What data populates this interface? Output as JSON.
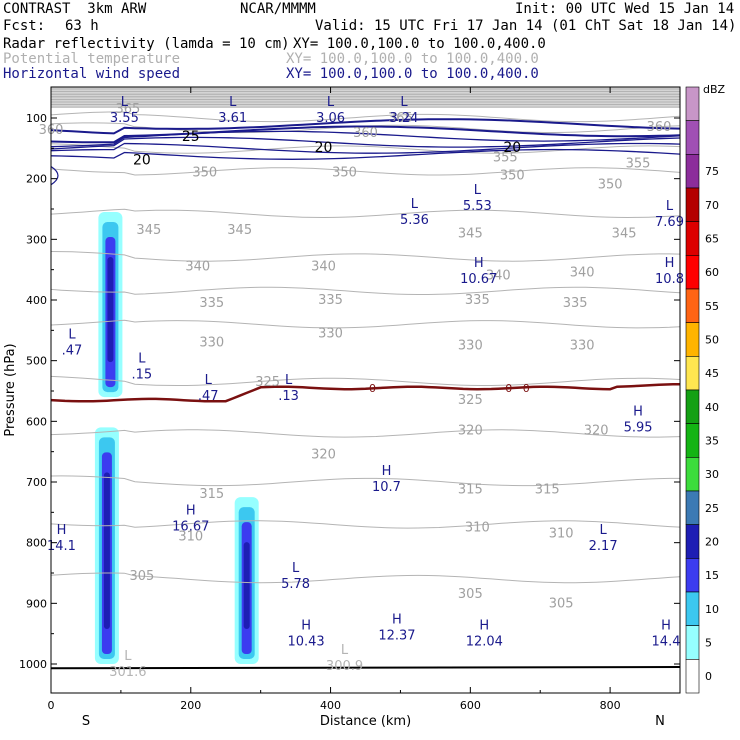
{
  "header": {
    "model": "CONTRAST  3km ARW",
    "source": "NCAR/MMMM",
    "init": "Init: 00 UTC Wed 15 Jan 14",
    "fcst_label": "Fcst:",
    "fcst_value": "63 h",
    "valid": "Valid: 15 UTC Fri 17 Jan 14 (01 ChT Sat 18 Jan 14)",
    "fields": [
      {
        "name": "Radar reflectivity (lamda = 10 cm)",
        "xy": "XY= 100.0,100.0 to 100.0,400.0",
        "color": "#000000"
      },
      {
        "name": "Potential temperature",
        "xy": "XY= 100.0,100.0 to 100.0,400.0",
        "color": "#b4b4b4"
      },
      {
        "name": "Horizontal wind speed",
        "xy": "XY= 100.0,100.0 to 100.0,400.0",
        "color": "#1a1a8c"
      }
    ]
  },
  "chart_data": {
    "type": "cross-section",
    "xlabel": "Distance (km)",
    "ylabel": "Pressure (hPa)",
    "xlim": [
      0,
      900
    ],
    "ylim": [
      1000,
      70
    ],
    "x_ticks": [
      0,
      200,
      400,
      600,
      800
    ],
    "y_ticks": [
      100,
      200,
      300,
      400,
      500,
      600,
      700,
      800,
      900,
      1000
    ],
    "end_labels": {
      "left": "S",
      "right": "N"
    },
    "colorbar": {
      "unit": "dBZ",
      "levels": [
        0,
        5,
        10,
        15,
        20,
        25,
        30,
        35,
        40,
        45,
        50,
        55,
        60,
        65,
        70,
        75
      ],
      "colors": [
        "#ffffff",
        "#96ffff",
        "#3cc8f0",
        "#3c3cf0",
        "#1e1eb4",
        "#3c7ab4",
        "#3cdc3c",
        "#14b414",
        "#14a014",
        "#ffe650",
        "#ffb400",
        "#ff6414",
        "#ff0000",
        "#dc0000",
        "#b40000",
        "#8c2d9b",
        "#a050b4",
        "#c896c8"
      ]
    },
    "theta_contours": [
      {
        "value": "365",
        "label_positions": [
          [
            110,
            85
          ],
          [
            500,
            100
          ]
        ]
      },
      {
        "value": "360",
        "label_positions": [
          [
            0,
            120
          ],
          [
            450,
            125
          ],
          [
            870,
            115
          ]
        ]
      },
      {
        "value": "355",
        "label_positions": [
          [
            650,
            165
          ],
          [
            840,
            175
          ]
        ]
      },
      {
        "value": "350",
        "label_positions": [
          [
            220,
            190
          ],
          [
            420,
            190
          ],
          [
            660,
            195
          ],
          [
            800,
            210
          ]
        ]
      },
      {
        "value": "345",
        "label_positions": [
          [
            140,
            285
          ],
          [
            270,
            285
          ],
          [
            600,
            290
          ],
          [
            820,
            290
          ]
        ]
      },
      {
        "value": "340",
        "label_positions": [
          [
            210,
            345
          ],
          [
            390,
            345
          ],
          [
            640,
            360
          ],
          [
            760,
            355
          ]
        ]
      },
      {
        "value": "335",
        "label_positions": [
          [
            230,
            405
          ],
          [
            400,
            400
          ],
          [
            610,
            400
          ],
          [
            750,
            405
          ]
        ]
      },
      {
        "value": "330",
        "label_positions": [
          [
            230,
            470
          ],
          [
            400,
            455
          ],
          [
            600,
            475
          ],
          [
            760,
            475
          ]
        ]
      },
      {
        "value": "325",
        "label_positions": [
          [
            310,
            535
          ],
          [
            600,
            565
          ]
        ]
      },
      {
        "value": "320",
        "label_positions": [
          [
            390,
            655
          ],
          [
            600,
            615
          ],
          [
            780,
            615
          ]
        ]
      },
      {
        "value": "315",
        "label_positions": [
          [
            230,
            720
          ],
          [
            600,
            712
          ],
          [
            710,
            712
          ]
        ]
      },
      {
        "value": "310",
        "label_positions": [
          [
            200,
            790
          ],
          [
            610,
            775
          ],
          [
            730,
            785
          ]
        ]
      },
      {
        "value": "305",
        "label_positions": [
          [
            130,
            855
          ],
          [
            600,
            885
          ],
          [
            730,
            900
          ]
        ]
      }
    ],
    "wind_contours": [
      {
        "value": "25",
        "label_positions": [
          [
            200,
            130
          ]
        ]
      },
      {
        "value": "20",
        "label_positions": [
          [
            130,
            168
          ],
          [
            390,
            148
          ],
          [
            660,
            148
          ]
        ]
      }
    ],
    "zero_line_labels": [
      "0",
      "0",
      "0"
    ],
    "extrema": [
      {
        "type": "L",
        "value": "3.55",
        "x": 105,
        "p": 87,
        "color": "#1a1a8c"
      },
      {
        "type": "L",
        "value": "3.61",
        "x": 260,
        "p": 87,
        "color": "#1a1a8c"
      },
      {
        "type": "L",
        "value": "3.06",
        "x": 400,
        "p": 87,
        "color": "#1a1a8c"
      },
      {
        "type": "L",
        "value": "3.24",
        "x": 505,
        "p": 87,
        "color": "#1a1a8c"
      },
      {
        "type": "L",
        "value": "5.36",
        "x": 520,
        "p": 255,
        "color": "#1a1a8c"
      },
      {
        "type": "L",
        "value": "5.53",
        "x": 610,
        "p": 232,
        "color": "#1a1a8c"
      },
      {
        "type": "L",
        "value": "7.69",
        "x": 885,
        "p": 258,
        "color": "#1a1a8c"
      },
      {
        "type": "H",
        "value": "10.67",
        "x": 612,
        "p": 352,
        "color": "#1a1a8c"
      },
      {
        "type": "H",
        "value": "10.8",
        "x": 885,
        "p": 352,
        "color": "#1a1a8c"
      },
      {
        "type": "L",
        "value": ".47",
        "x": 30,
        "p": 470,
        "color": "#1a1a8c"
      },
      {
        "type": "L",
        "value": ".15",
        "x": 130,
        "p": 510,
        "color": "#1a1a8c"
      },
      {
        "type": "L",
        "value": ".47",
        "x": 225,
        "p": 545,
        "color": "#1a1a8c"
      },
      {
        "type": "L",
        "value": ".13",
        "x": 340,
        "p": 545,
        "color": "#1a1a8c"
      },
      {
        "type": "H",
        "value": "5.95",
        "x": 840,
        "p": 597,
        "color": "#1a1a8c"
      },
      {
        "type": "H",
        "value": "10.7",
        "x": 480,
        "p": 695,
        "color": "#1a1a8c"
      },
      {
        "type": "H",
        "value": "16.67",
        "x": 200,
        "p": 760,
        "color": "#1a1a8c"
      },
      {
        "type": "H",
        "value": "14.1",
        "x": 15,
        "p": 792,
        "color": "#1a1a8c"
      },
      {
        "type": "L",
        "value": "2.17",
        "x": 790,
        "p": 792,
        "color": "#1a1a8c"
      },
      {
        "type": "L",
        "value": "5.78",
        "x": 350,
        "p": 855,
        "color": "#1a1a8c"
      },
      {
        "type": "H",
        "value": "10.43",
        "x": 365,
        "p": 950,
        "color": "#1a1a8c"
      },
      {
        "type": "H",
        "value": "12.37",
        "x": 495,
        "p": 940,
        "color": "#1a1a8c"
      },
      {
        "type": "H",
        "value": "12.04",
        "x": 620,
        "p": 950,
        "color": "#1a1a8c"
      },
      {
        "type": "H",
        "value": "14.4",
        "x": 880,
        "p": 950,
        "color": "#1a1a8c"
      },
      {
        "type": "L",
        "value": "301.6",
        "x": 110,
        "p": 1000,
        "color": "#b4b4b4"
      },
      {
        "type": "L",
        "value": "300.9",
        "x": 420,
        "p": 990,
        "color": "#b4b4b4"
      }
    ],
    "reflectivity_cells": [
      {
        "x_center": 85,
        "p_top": 255,
        "p_bottom": 560,
        "max_dbz": 20
      },
      {
        "x_center": 80,
        "p_top": 610,
        "p_bottom": 1000,
        "max_dbz": 20
      },
      {
        "x_center": 280,
        "p_top": 725,
        "p_bottom": 1000,
        "max_dbz": 20
      }
    ]
  }
}
